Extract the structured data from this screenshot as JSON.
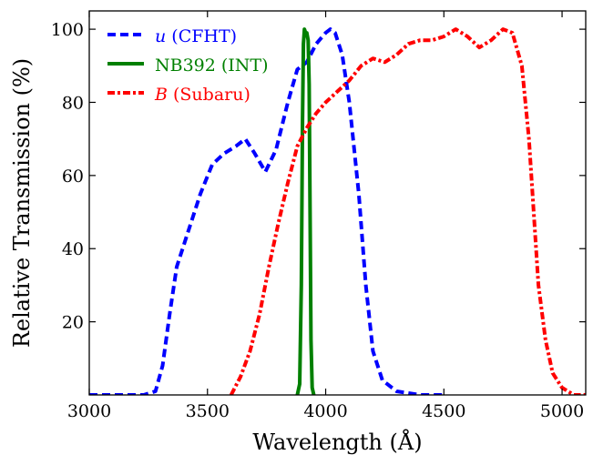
{
  "chart_data": {
    "type": "line",
    "xlabel": "Wavelength (Å)",
    "ylabel": "Relative Transmission (%)",
    "xlim": [
      3000,
      5100
    ],
    "ylim": [
      0,
      105
    ],
    "xticks": [
      3000,
      3500,
      4000,
      4500,
      5000
    ],
    "xtick_labels": [
      "3000",
      "3500",
      "4000",
      "4500",
      "5000"
    ],
    "yticks": [
      20,
      40,
      60,
      80,
      100
    ],
    "ytick_labels": [
      "20",
      "40",
      "60",
      "80",
      "100"
    ],
    "grid": false,
    "legend_position": "top-left",
    "series": [
      {
        "name_var": "u",
        "name_rest": " (CFHT)",
        "color": "#0000ff",
        "style": "dashed",
        "points": [
          [
            3000,
            0
          ],
          [
            3230,
            0
          ],
          [
            3280,
            1
          ],
          [
            3310,
            8
          ],
          [
            3340,
            22
          ],
          [
            3370,
            35
          ],
          [
            3420,
            45
          ],
          [
            3470,
            55
          ],
          [
            3520,
            63
          ],
          [
            3570,
            66
          ],
          [
            3620,
            68
          ],
          [
            3660,
            70
          ],
          [
            3700,
            66
          ],
          [
            3745,
            61
          ],
          [
            3790,
            67
          ],
          [
            3840,
            80
          ],
          [
            3880,
            89
          ],
          [
            3920,
            91
          ],
          [
            3960,
            96
          ],
          [
            4000,
            99
          ],
          [
            4020,
            100
          ],
          [
            4040,
            99
          ],
          [
            4070,
            93
          ],
          [
            4100,
            80
          ],
          [
            4140,
            55
          ],
          [
            4170,
            30
          ],
          [
            4200,
            12
          ],
          [
            4240,
            4
          ],
          [
            4300,
            1
          ],
          [
            4400,
            0
          ],
          [
            4500,
            0
          ]
        ]
      },
      {
        "name_var": "",
        "name_rest": "NB392 (INT)",
        "color": "#008000",
        "style": "solid",
        "points": [
          [
            3880,
            0
          ],
          [
            3890,
            3
          ],
          [
            3897,
            30
          ],
          [
            3902,
            75
          ],
          [
            3906,
            96
          ],
          [
            3910,
            100
          ],
          [
            3915,
            99
          ],
          [
            3920,
            99
          ],
          [
            3926,
            97
          ],
          [
            3930,
            85
          ],
          [
            3934,
            50
          ],
          [
            3938,
            15
          ],
          [
            3943,
            2
          ],
          [
            3950,
            0
          ]
        ]
      },
      {
        "name_var": "B",
        "name_rest": " (Subaru)",
        "color": "#ff0000",
        "style": "dashdot",
        "points": [
          [
            3600,
            0
          ],
          [
            3640,
            5
          ],
          [
            3680,
            12
          ],
          [
            3720,
            22
          ],
          [
            3760,
            35
          ],
          [
            3800,
            47
          ],
          [
            3840,
            58
          ],
          [
            3880,
            68
          ],
          [
            3920,
            73
          ],
          [
            3960,
            77
          ],
          [
            4000,
            80
          ],
          [
            4050,
            83
          ],
          [
            4100,
            86
          ],
          [
            4150,
            90
          ],
          [
            4200,
            92
          ],
          [
            4250,
            91
          ],
          [
            4300,
            93
          ],
          [
            4350,
            96
          ],
          [
            4400,
            97
          ],
          [
            4450,
            97
          ],
          [
            4500,
            98
          ],
          [
            4550,
            100
          ],
          [
            4600,
            98
          ],
          [
            4650,
            95
          ],
          [
            4700,
            97
          ],
          [
            4750,
            100
          ],
          [
            4790,
            99
          ],
          [
            4830,
            90
          ],
          [
            4860,
            70
          ],
          [
            4880,
            50
          ],
          [
            4900,
            30
          ],
          [
            4930,
            15
          ],
          [
            4960,
            6
          ],
          [
            5000,
            2
          ],
          [
            5050,
            0
          ],
          [
            5100,
            0
          ]
        ]
      }
    ]
  }
}
